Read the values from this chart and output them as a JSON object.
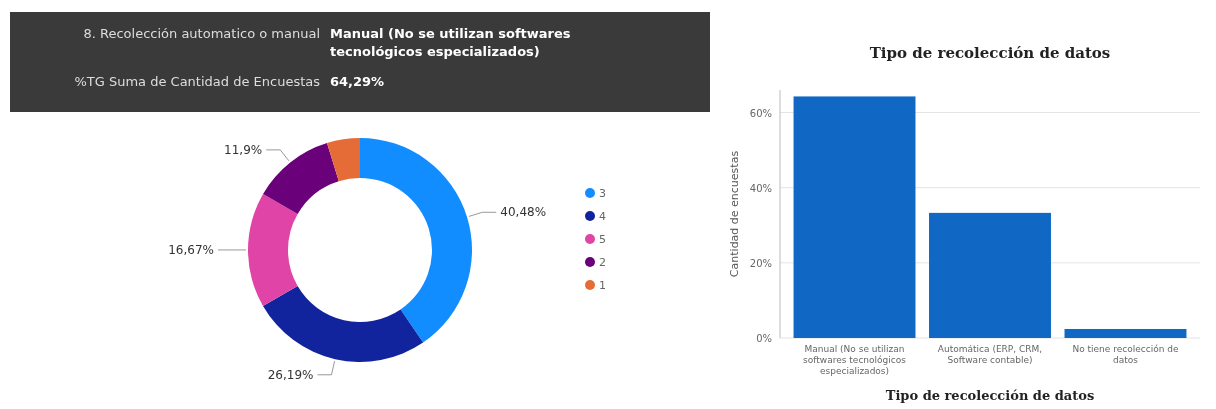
{
  "chart_data": [
    {
      "type": "donut",
      "categories": [
        "3",
        "4",
        "5",
        "2",
        "1"
      ],
      "values": [
        40.48,
        26.19,
        16.67,
        11.9,
        4.76
      ],
      "colors": [
        "#118dff",
        "#12239e",
        "#e044a7",
        "#6b007b",
        "#e66c37"
      ],
      "value_labels": [
        "40,48%",
        "26,19%",
        "16,67%",
        "11,9%",
        null
      ],
      "legend": "right"
    },
    {
      "type": "bar",
      "title": "Tipo de recolección de datos",
      "xlabel": "Tipo de recolección de datos",
      "ylabel": "Cantidad de encuestas",
      "categories": [
        "Manual (No se utilizan softwares tecnológicos especializados)",
        "Automática (ERP, CRM, Software contable)",
        "No tiene recolección de datos"
      ],
      "values": [
        64.29,
        33.3,
        2.4
      ],
      "color": "#1168c4",
      "ylim": [
        0,
        66
      ],
      "yticks": [
        {
          "value": 0,
          "label": "0%"
        },
        {
          "value": 20,
          "label": "20%"
        },
        {
          "value": 40,
          "label": "40%"
        },
        {
          "value": 60,
          "label": "60%"
        }
      ],
      "grid": "y",
      "annotations": [
        "8. Recolección automatico o manual",
        "Manual (No se utilizan softwares tecnológicos especializados)",
        "%TG Suma de Cantidad de Encuestas",
        "64,29%"
      ]
    }
  ]
}
